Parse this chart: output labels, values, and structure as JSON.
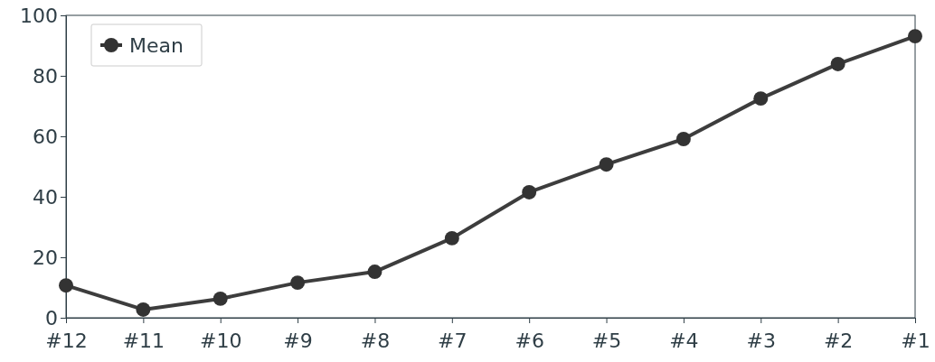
{
  "chart_data": {
    "type": "line",
    "categories": [
      "#12",
      "#11",
      "#10",
      "#9",
      "#8",
      "#7",
      "#6",
      "#5",
      "#4",
      "#3",
      "#2",
      "#1"
    ],
    "series": [
      {
        "name": "Mean",
        "color": "#333333",
        "values": [
          10.7,
          2.7,
          6.3,
          11.6,
          15.2,
          26.3,
          41.5,
          50.7,
          59.1,
          72.5,
          83.9,
          93.1
        ]
      }
    ],
    "ylim": [
      0,
      100
    ],
    "yticks": [
      0,
      20,
      40,
      60,
      80,
      100
    ],
    "grid": false,
    "legend": "top left",
    "marker": "circle",
    "line_style": "solid"
  }
}
